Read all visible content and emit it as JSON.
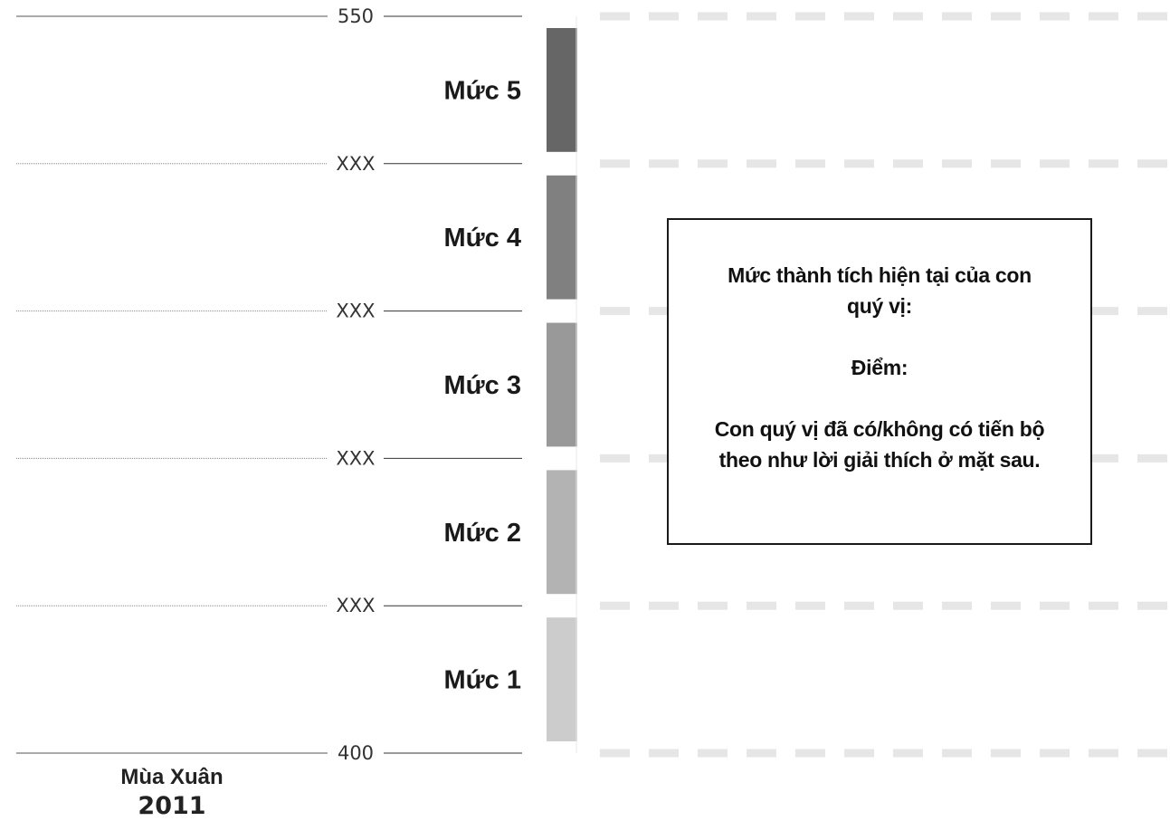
{
  "chart_data": {
    "type": "bar",
    "orientation": "vertical-scale",
    "ylim": [
      400,
      550
    ],
    "scale_labels": [
      {
        "label": "550",
        "value": 550
      },
      {
        "label": "XXX",
        "value": 520
      },
      {
        "label": "XXX",
        "value": 490
      },
      {
        "label": "XXX",
        "value": 460
      },
      {
        "label": "XXX",
        "value": 430
      },
      {
        "label": "400",
        "value": 400
      }
    ],
    "levels": [
      {
        "name": "Mức 5",
        "from": 520,
        "to": 550,
        "color": "#666666"
      },
      {
        "name": "Mức 4",
        "from": 490,
        "to": 520,
        "color": "#808080"
      },
      {
        "name": "Mức 3",
        "from": 460,
        "to": 490,
        "color": "#999999"
      },
      {
        "name": "Mức 2",
        "from": 430,
        "to": 460,
        "color": "#b3b3b3"
      },
      {
        "name": "Mức 1",
        "from": 400,
        "to": 430,
        "color": "#cccccc"
      }
    ],
    "season_label": "Mùa Xuân",
    "year_label": "2011",
    "grid_color": "#e6e6e6"
  },
  "info_box": {
    "line1": "Mức thành tích hiện tại của con",
    "line2": "quý vị:",
    "line3": "Điểm:",
    "line4": "Con quý vị đã có/không có tiến bộ",
    "line5": "theo như lời giải thích ở mặt sau."
  }
}
